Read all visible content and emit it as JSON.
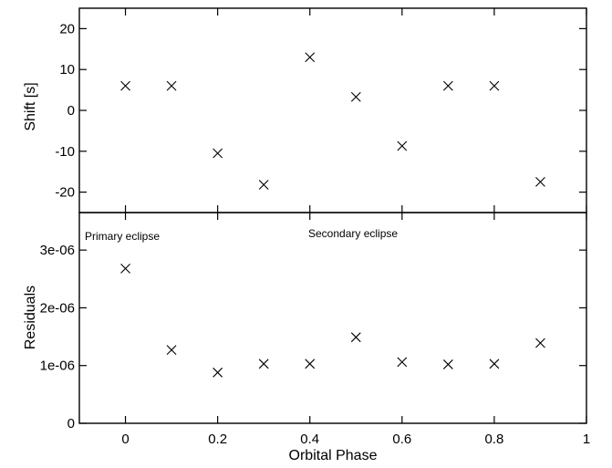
{
  "chart_data": [
    {
      "type": "scatter",
      "title": "",
      "xlabel": "",
      "ylabel": "Shift [s]",
      "xlim": [
        -0.1,
        1.0
      ],
      "ylim": [
        -25,
        25
      ],
      "xticks": [
        0,
        0.2,
        0.4,
        0.6,
        0.8,
        1
      ],
      "yticks": [
        -20,
        -10,
        0,
        10,
        20
      ],
      "ytick_labels": [
        "-20",
        "-10",
        "0",
        "10",
        "20"
      ],
      "marker": "x",
      "grid": false,
      "x": [
        0,
        0.1,
        0.2,
        0.3,
        0.4,
        0.5,
        0.6,
        0.7,
        0.8,
        0.9
      ],
      "y": [
        6,
        6,
        -10.5,
        -18.2,
        13,
        3.3,
        -8.7,
        6,
        6,
        -17.5
      ]
    },
    {
      "type": "scatter",
      "title": "",
      "xlabel": "Orbital Phase",
      "ylabel": "Residuals",
      "xlim": [
        -0.1,
        1.0
      ],
      "ylim": [
        0,
        3.65e-06
      ],
      "xticks": [
        0,
        0.2,
        0.4,
        0.6,
        0.8,
        1
      ],
      "xtick_labels": [
        "0",
        "0.2",
        "0.4",
        "0.6",
        "0.8",
        "1"
      ],
      "yticks": [
        0,
        1e-06,
        2e-06,
        3e-06
      ],
      "ytick_labels": [
        "0",
        "1e-06",
        "2e-06",
        "3e-06"
      ],
      "marker": "x",
      "grid": false,
      "annotations": [
        "Primary eclipse",
        "Secondary eclipse"
      ],
      "x": [
        0,
        0.1,
        0.2,
        0.3,
        0.4,
        0.5,
        0.6,
        0.7,
        0.8,
        0.9
      ],
      "y": [
        2.68e-06,
        1.27e-06,
        8.8e-07,
        1.03e-06,
        1.03e-06,
        1.49e-06,
        1.06e-06,
        1.02e-06,
        1.03e-06,
        1.39e-06
      ]
    }
  ]
}
